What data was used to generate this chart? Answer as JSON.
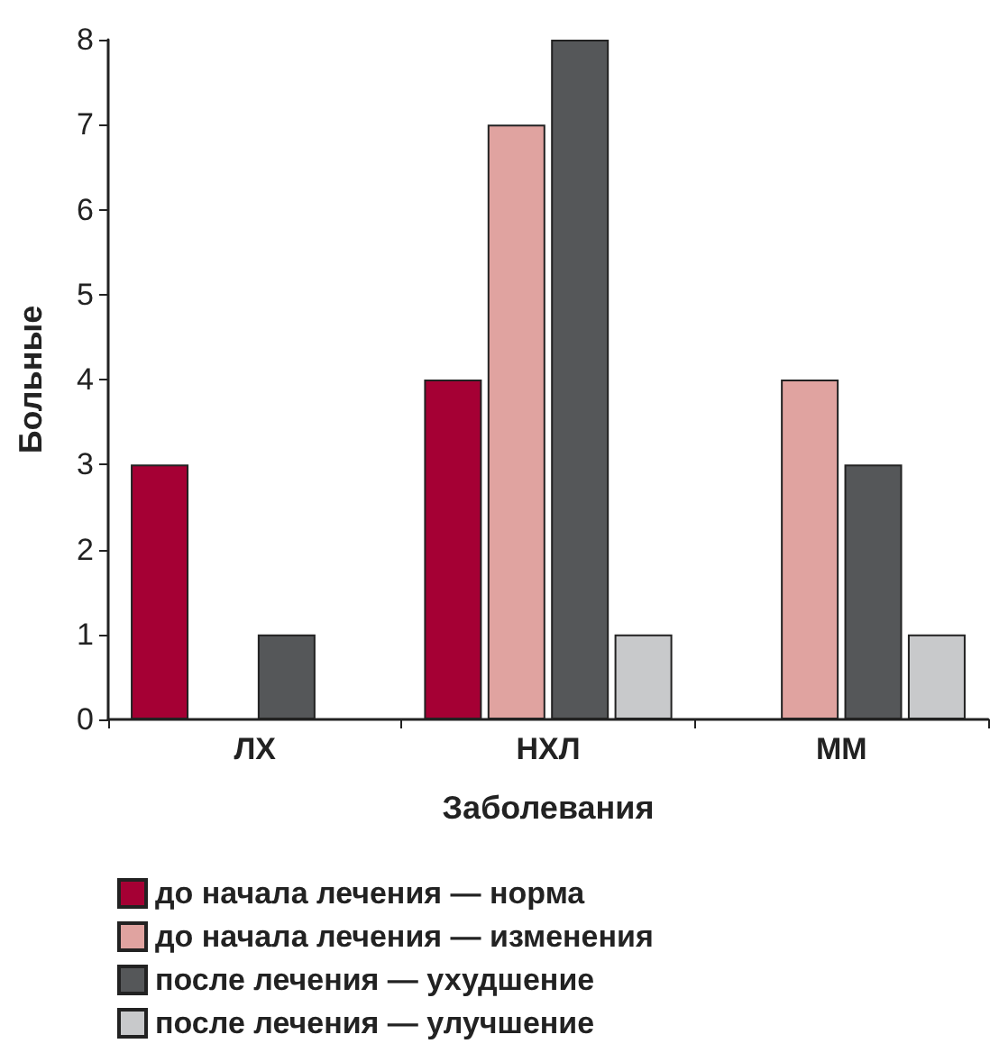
{
  "chart_data": {
    "type": "bar",
    "xlabel": "Заболевания",
    "ylabel": "Больные",
    "categories": [
      "ЛХ",
      "НХЛ",
      "ММ"
    ],
    "series": [
      {
        "name": "до начала лечения — норма",
        "color": "#a50034",
        "values": [
          3,
          4,
          null
        ]
      },
      {
        "name": "до начала лечения — изменения",
        "color": "#e0a3a0",
        "values": [
          null,
          7,
          4
        ]
      },
      {
        "name": "после лечения — ухудшение",
        "color": "#555759",
        "values": [
          1,
          8,
          3
        ]
      },
      {
        "name": "после лечения — улучшение",
        "color": "#c8c9cb",
        "values": [
          null,
          1,
          1
        ]
      }
    ],
    "ylim": [
      0,
      8
    ],
    "yticks": [
      0,
      1,
      2,
      3,
      4,
      5,
      6,
      7,
      8
    ],
    "grid": false,
    "legend": "bottom"
  }
}
